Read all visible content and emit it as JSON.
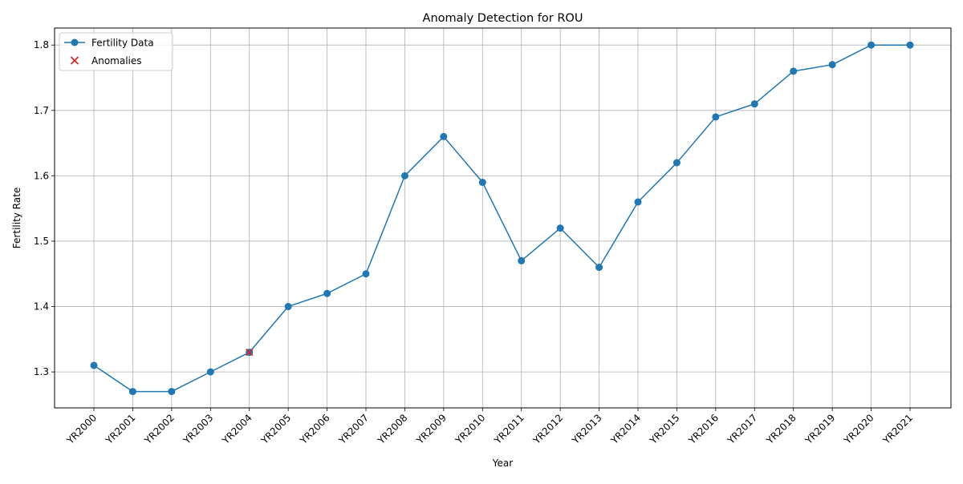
{
  "chart_data": {
    "type": "line",
    "title": "Anomaly Detection for ROU",
    "xlabel": "Year",
    "ylabel": "Fertility Rate",
    "categories": [
      "YR2000",
      "YR2001",
      "YR2002",
      "YR2003",
      "YR2004",
      "YR2005",
      "YR2006",
      "YR2007",
      "YR2008",
      "YR2009",
      "YR2010",
      "YR2011",
      "YR2012",
      "YR2013",
      "YR2014",
      "YR2015",
      "YR2016",
      "YR2017",
      "YR2018",
      "YR2019",
      "YR2020",
      "YR2021"
    ],
    "ylim": [
      1.245,
      1.826
    ],
    "yticks": [
      1.3,
      1.4,
      1.5,
      1.6,
      1.7,
      1.8
    ],
    "ytick_labels": [
      "1.3",
      "1.4",
      "1.5",
      "1.6",
      "1.7",
      "1.8"
    ],
    "grid": true,
    "legend_position": "upper-left",
    "series": [
      {
        "name": "Fertility Data",
        "color": "#1f77b4",
        "marker": "circle",
        "values": [
          1.31,
          1.27,
          1.27,
          1.3,
          1.33,
          1.4,
          1.42,
          1.45,
          1.6,
          1.66,
          1.59,
          1.47,
          1.52,
          1.46,
          1.56,
          1.62,
          1.69,
          1.71,
          1.76,
          1.77,
          1.8,
          1.8
        ]
      }
    ],
    "anomalies": {
      "name": "Anomalies",
      "color": "#d62728",
      "marker": "x",
      "points": [
        {
          "x": "YR2004",
          "y": 1.33
        }
      ]
    }
  }
}
